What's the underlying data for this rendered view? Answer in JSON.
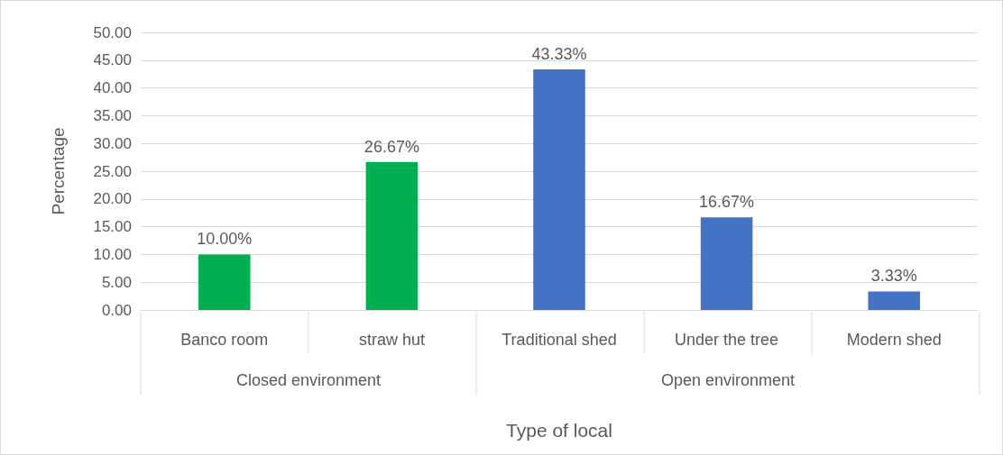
{
  "chart_data": {
    "type": "bar",
    "xlabel": "Type of local",
    "ylabel": "Percentage",
    "categories": [
      "Banco room",
      "straw hut",
      "Traditional shed",
      "Under the tree",
      "Modern shed"
    ],
    "values": [
      10.0,
      26.67,
      43.33,
      16.67,
      3.33
    ],
    "colors": [
      "#00b050",
      "#00b050",
      "#4472c4",
      "#4472c4",
      "#4472c4"
    ],
    "value_labels": [
      "10.00%",
      "26.67%",
      "43.33%",
      "16.67%",
      "3.33%"
    ],
    "annotations": [
      "Closed environment",
      "Open environment"
    ],
    "ylim": [
      0,
      50
    ],
    "yticks": [
      {
        "value": 0,
        "label": "0.00"
      },
      {
        "value": 5,
        "label": "5.00"
      },
      {
        "value": 10,
        "label": "10.00"
      },
      {
        "value": 15,
        "label": "15.00"
      },
      {
        "value": 20,
        "label": "20.00"
      },
      {
        "value": 25,
        "label": "25.00"
      },
      {
        "value": 30,
        "label": "30.00"
      },
      {
        "value": 35,
        "label": "35.00"
      },
      {
        "value": 40,
        "label": "40.00"
      },
      {
        "value": 45,
        "label": "45.00"
      },
      {
        "value": 50,
        "label": "50.00"
      }
    ],
    "grid": "y"
  }
}
